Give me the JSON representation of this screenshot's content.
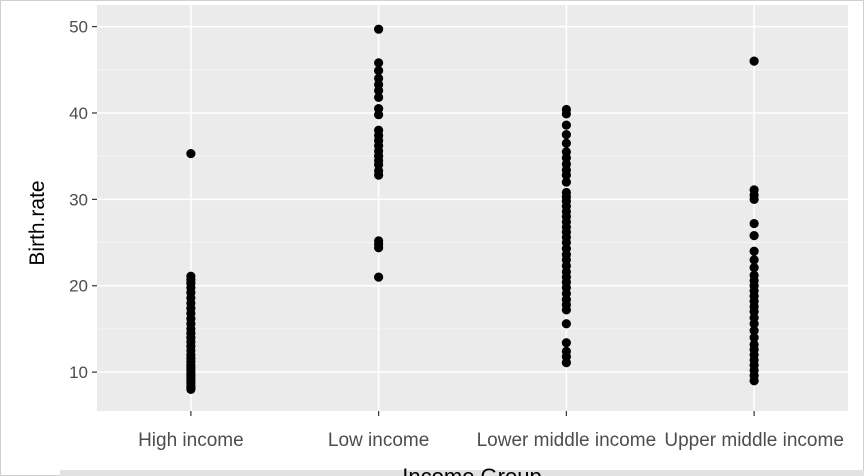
{
  "chart_data": {
    "type": "scatter",
    "xlabel": "Income Group",
    "ylabel": "Birth.rate",
    "categories": [
      "High income",
      "Low income",
      "Lower middle income",
      "Upper middle income"
    ],
    "yticks": [
      10,
      20,
      30,
      40,
      50
    ],
    "ylim": [
      5.5,
      52.5
    ],
    "grid": true,
    "legend": "none",
    "series": [
      {
        "category": "High income",
        "values": [
          35.3,
          21.1,
          20.7,
          20.3,
          19.8,
          19.2,
          18.6,
          18.0,
          17.4,
          16.8,
          16.2,
          15.6,
          15.0,
          14.5,
          14.0,
          13.5,
          13.0,
          12.5,
          12.0,
          11.6,
          11.2,
          10.8,
          10.5,
          10.2,
          9.9,
          9.6,
          9.3,
          9.0,
          8.7,
          8.4,
          8.2,
          8.0
        ]
      },
      {
        "category": "Low income",
        "values": [
          49.7,
          45.8,
          44.9,
          44.0,
          43.3,
          42.6,
          41.8,
          40.5,
          39.8,
          38.0,
          37.4,
          36.8,
          36.2,
          35.6,
          35.0,
          34.5,
          34.0,
          33.3,
          32.8,
          25.2,
          24.8,
          24.4,
          21.0
        ]
      },
      {
        "category": "Lower middle income",
        "values": [
          40.4,
          39.9,
          38.6,
          37.5,
          36.5,
          35.5,
          34.8,
          34.1,
          33.4,
          32.8,
          32.0,
          30.8,
          30.3,
          29.8,
          29.2,
          28.6,
          28.0,
          27.4,
          26.8,
          26.2,
          25.6,
          25.0,
          24.3,
          23.6,
          23.0,
          22.3,
          21.6,
          21.0,
          20.4,
          19.8,
          19.1,
          18.4,
          17.8,
          17.2,
          15.6,
          13.4,
          12.4,
          11.8,
          11.1
        ]
      },
      {
        "category": "Upper middle income",
        "values": [
          46.0,
          31.1,
          30.5,
          30.0,
          27.2,
          25.8,
          24.0,
          23.0,
          22.1,
          21.2,
          20.6,
          20.0,
          19.4,
          18.8,
          18.2,
          17.6,
          17.0,
          16.3,
          15.6,
          14.8,
          14.0,
          13.2,
          12.6,
          12.0,
          11.4,
          10.8,
          10.2,
          9.6,
          9.0
        ]
      }
    ]
  }
}
